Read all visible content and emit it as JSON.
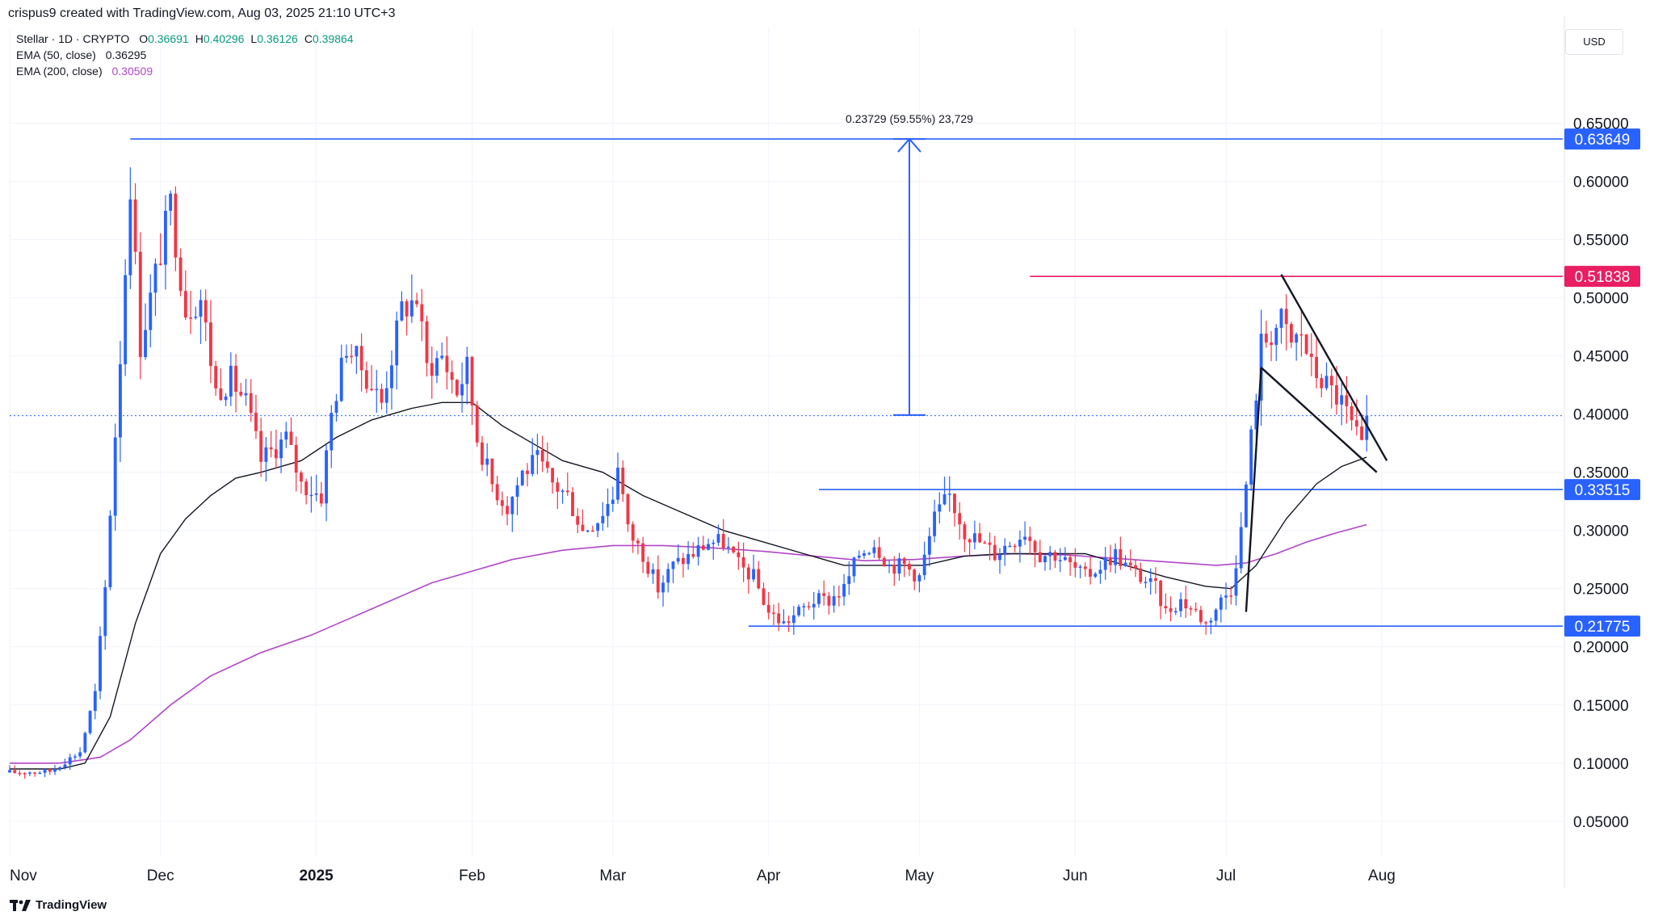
{
  "header": {
    "creator": "crispus9 created with TradingView.com, Aug 03, 2025 21:10 UTC+3",
    "symbol": "Stellar · 1D · CRYPTO",
    "ohlc": [
      {
        "key": "O",
        "value": "0.36691"
      },
      {
        "key": "H",
        "value": "0.40296"
      },
      {
        "key": "L",
        "value": "0.36126"
      },
      {
        "key": "C",
        "value": "0.39864"
      }
    ],
    "ema50_label": "EMA (50, close)",
    "ema50_value": "0.36295",
    "ema200_label": "EMA (200, close)",
    "ema200_value": "0.30509",
    "currency": "USD"
  },
  "footer": {
    "brand": "TradingView"
  },
  "colors": {
    "up": "#089981",
    "down": "#f23645",
    "up_candle": "#2962ff",
    "ema50": "#131722",
    "ema200": "#b145c9",
    "blue_line": "#2962ff",
    "pink_line": "#e91e63",
    "grid": "#f0f3fa",
    "axis_text": "#131722"
  },
  "chart_data": {
    "type": "candlestick",
    "title": "Stellar · 1D · CRYPTO",
    "x_ticks": [
      {
        "label": "Nov",
        "day": 0
      },
      {
        "label": "Dec",
        "day": 30
      },
      {
        "label": "2025",
        "day": 61
      },
      {
        "label": "Feb",
        "day": 92
      },
      {
        "label": "Mar",
        "day": 120
      },
      {
        "label": "Apr",
        "day": 151
      },
      {
        "label": "May",
        "day": 181
      },
      {
        "label": "Jun",
        "day": 212
      },
      {
        "label": "Jul",
        "day": 242
      },
      {
        "label": "Aug",
        "day": 273
      }
    ],
    "y_ticks": [
      0.05,
      0.1,
      0.15,
      0.2,
      0.25,
      0.3,
      0.35,
      0.4,
      0.45,
      0.5,
      0.55,
      0.6,
      0.65
    ],
    "y_range": [
      0.02,
      0.69
    ],
    "x_range": [
      0,
      309
    ],
    "price_key_points": [
      [
        0,
        0.092
      ],
      [
        8,
        0.093
      ],
      [
        14,
        0.11
      ],
      [
        17,
        0.16
      ],
      [
        19,
        0.25
      ],
      [
        22,
        0.45
      ],
      [
        24,
        0.6
      ],
      [
        26,
        0.46
      ],
      [
        30,
        0.54
      ],
      [
        32,
        0.58
      ],
      [
        35,
        0.49
      ],
      [
        38,
        0.5
      ],
      [
        41,
        0.42
      ],
      [
        44,
        0.43
      ],
      [
        47,
        0.41
      ],
      [
        50,
        0.36
      ],
      [
        55,
        0.38
      ],
      [
        58,
        0.34
      ],
      [
        62,
        0.33
      ],
      [
        64,
        0.4
      ],
      [
        67,
        0.46
      ],
      [
        70,
        0.44
      ],
      [
        74,
        0.41
      ],
      [
        78,
        0.49
      ],
      [
        81,
        0.5
      ],
      [
        83,
        0.44
      ],
      [
        86,
        0.45
      ],
      [
        89,
        0.42
      ],
      [
        91,
        0.44
      ],
      [
        93,
        0.38
      ],
      [
        96,
        0.34
      ],
      [
        99,
        0.32
      ],
      [
        102,
        0.35
      ],
      [
        105,
        0.36
      ],
      [
        108,
        0.34
      ],
      [
        111,
        0.33
      ],
      [
        114,
        0.3
      ],
      [
        117,
        0.31
      ],
      [
        120,
        0.33
      ],
      [
        121,
        0.36
      ],
      [
        123,
        0.3
      ],
      [
        126,
        0.28
      ],
      [
        129,
        0.25
      ],
      [
        132,
        0.27
      ],
      [
        136,
        0.28
      ],
      [
        139,
        0.29
      ],
      [
        142,
        0.29
      ],
      [
        145,
        0.27
      ],
      [
        148,
        0.26
      ],
      [
        151,
        0.23
      ],
      [
        154,
        0.22
      ],
      [
        157,
        0.23
      ],
      [
        160,
        0.24
      ],
      [
        163,
        0.24
      ],
      [
        166,
        0.25
      ],
      [
        169,
        0.28
      ],
      [
        172,
        0.29
      ],
      [
        175,
        0.27
      ],
      [
        178,
        0.27
      ],
      [
        181,
        0.26
      ],
      [
        184,
        0.31
      ],
      [
        187,
        0.33
      ],
      [
        190,
        0.3
      ],
      [
        193,
        0.29
      ],
      [
        196,
        0.28
      ],
      [
        199,
        0.29
      ],
      [
        202,
        0.3
      ],
      [
        205,
        0.28
      ],
      [
        208,
        0.28
      ],
      [
        211,
        0.27
      ],
      [
        214,
        0.26
      ],
      [
        217,
        0.27
      ],
      [
        220,
        0.28
      ],
      [
        222,
        0.27
      ],
      [
        225,
        0.26
      ],
      [
        228,
        0.25
      ],
      [
        230,
        0.23
      ],
      [
        233,
        0.24
      ],
      [
        236,
        0.23
      ],
      [
        238,
        0.22
      ],
      [
        241,
        0.24
      ],
      [
        243,
        0.25
      ],
      [
        245,
        0.3
      ],
      [
        247,
        0.38
      ],
      [
        249,
        0.46
      ],
      [
        251,
        0.47
      ],
      [
        253,
        0.48
      ],
      [
        255,
        0.46
      ],
      [
        257,
        0.47
      ],
      [
        259,
        0.44
      ],
      [
        261,
        0.43
      ],
      [
        263,
        0.42
      ],
      [
        265,
        0.41
      ],
      [
        267,
        0.39
      ],
      [
        269,
        0.37
      ],
      [
        270,
        0.38
      ]
    ],
    "ema50_points": [
      [
        0,
        0.095
      ],
      [
        10,
        0.095
      ],
      [
        15,
        0.1
      ],
      [
        20,
        0.14
      ],
      [
        25,
        0.22
      ],
      [
        30,
        0.28
      ],
      [
        35,
        0.31
      ],
      [
        40,
        0.33
      ],
      [
        45,
        0.345
      ],
      [
        50,
        0.35
      ],
      [
        58,
        0.36
      ],
      [
        65,
        0.38
      ],
      [
        72,
        0.395
      ],
      [
        80,
        0.405
      ],
      [
        86,
        0.41
      ],
      [
        92,
        0.41
      ],
      [
        98,
        0.39
      ],
      [
        104,
        0.375
      ],
      [
        110,
        0.36
      ],
      [
        118,
        0.35
      ],
      [
        126,
        0.33
      ],
      [
        134,
        0.315
      ],
      [
        142,
        0.3
      ],
      [
        150,
        0.29
      ],
      [
        158,
        0.28
      ],
      [
        166,
        0.27
      ],
      [
        174,
        0.27
      ],
      [
        182,
        0.27
      ],
      [
        190,
        0.278
      ],
      [
        198,
        0.28
      ],
      [
        206,
        0.28
      ],
      [
        214,
        0.28
      ],
      [
        222,
        0.27
      ],
      [
        230,
        0.26
      ],
      [
        238,
        0.252
      ],
      [
        243,
        0.25
      ],
      [
        248,
        0.27
      ],
      [
        254,
        0.31
      ],
      [
        260,
        0.34
      ],
      [
        265,
        0.355
      ],
      [
        270,
        0.363
      ]
    ],
    "ema200_points": [
      [
        0,
        0.1
      ],
      [
        10,
        0.1
      ],
      [
        18,
        0.105
      ],
      [
        24,
        0.12
      ],
      [
        32,
        0.15
      ],
      [
        40,
        0.175
      ],
      [
        50,
        0.195
      ],
      [
        60,
        0.21
      ],
      [
        68,
        0.225
      ],
      [
        76,
        0.24
      ],
      [
        84,
        0.255
      ],
      [
        92,
        0.265
      ],
      [
        100,
        0.275
      ],
      [
        110,
        0.283
      ],
      [
        120,
        0.287
      ],
      [
        130,
        0.287
      ],
      [
        140,
        0.285
      ],
      [
        150,
        0.282
      ],
      [
        160,
        0.278
      ],
      [
        170,
        0.274
      ],
      [
        180,
        0.275
      ],
      [
        190,
        0.278
      ],
      [
        200,
        0.28
      ],
      [
        210,
        0.279
      ],
      [
        220,
        0.276
      ],
      [
        230,
        0.273
      ],
      [
        240,
        0.27
      ],
      [
        246,
        0.272
      ],
      [
        252,
        0.28
      ],
      [
        258,
        0.29
      ],
      [
        264,
        0.298
      ],
      [
        270,
        0.305
      ]
    ],
    "levels": [
      {
        "name": "high-line",
        "price": 0.63649,
        "label": "0.63649",
        "from_day": 24,
        "color": "#2962ff"
      },
      {
        "name": "resistance-line",
        "price": 0.51838,
        "label": "0.51838",
        "from_day": 203,
        "color": "#e91e63"
      },
      {
        "name": "support-line",
        "price": 0.33515,
        "label": "0.33515",
        "from_day": 161,
        "color": "#2962ff"
      },
      {
        "name": "low-line",
        "price": 0.21775,
        "label": "0.21775",
        "from_day": 147,
        "color": "#2962ff"
      }
    ],
    "current_price": 0.39864,
    "measure": {
      "day": 179,
      "from_price": 0.3992,
      "to_price": 0.63649,
      "label": "0.23729 (59.55%) 23,729"
    },
    "pattern_lines": [
      [
        [
          246,
          0.23
        ],
        [
          249,
          0.44
        ]
      ],
      [
        [
          249,
          0.44
        ],
        [
          272,
          0.35
        ]
      ],
      [
        [
          253,
          0.52
        ],
        [
          274,
          0.36
        ]
      ]
    ]
  }
}
